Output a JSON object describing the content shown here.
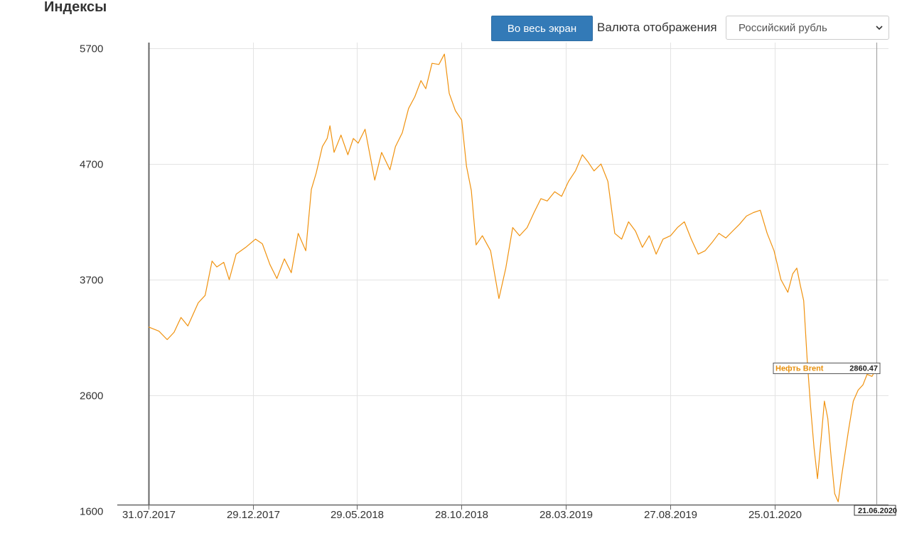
{
  "header": {
    "title": "Индексы",
    "fullscreen_label": "Во весь экран",
    "currency_label": "Валюта отображения",
    "currency_selected": "Российский рубль"
  },
  "colors": {
    "series": "#f0920f",
    "grid": "#e3e3e3",
    "axis": "#666666",
    "button": "#337ab7"
  },
  "chart_data": {
    "type": "line",
    "title": "",
    "xlabel": "",
    "ylabel": "",
    "ylim": [
      1600,
      5700
    ],
    "yticks": [
      {
        "value": 5700,
        "label": "5700"
      },
      {
        "value": 4700,
        "label": "4700"
      },
      {
        "value": 3700,
        "label": "3700"
      },
      {
        "value": 2600,
        "label": "2600"
      },
      {
        "value": 1600,
        "label": "1600"
      }
    ],
    "xticks": [
      "31.07.2017",
      "29.12.2017",
      "29.05.2018",
      "28.10.2018",
      "28.03.2019",
      "27.08.2019",
      "25.01.2020"
    ],
    "x_range": [
      "31.07.2017",
      "21.06.2020"
    ],
    "grid": true,
    "tooltip": {
      "name": "Нефть Brent",
      "value": "2860.47",
      "date": "21.06.2020"
    },
    "series": [
      {
        "name": "Нефть Brent",
        "points": [
          [
            "31.07.2017",
            3250
          ],
          [
            "15.08.2017",
            3210
          ],
          [
            "27.08.2017",
            3130
          ],
          [
            "06.09.2017",
            3200
          ],
          [
            "16.09.2017",
            3340
          ],
          [
            "26.09.2017",
            3260
          ],
          [
            "11.10.2017",
            3480
          ],
          [
            "21.10.2017",
            3550
          ],
          [
            "31.10.2017",
            3860
          ],
          [
            "07.11.2017",
            3810
          ],
          [
            "17.11.2017",
            3850
          ],
          [
            "25.11.2017",
            3700
          ],
          [
            "05.12.2017",
            3920
          ],
          [
            "19.12.2017",
            3980
          ],
          [
            "02.01.2018",
            4050
          ],
          [
            "12.01.2018",
            4010
          ],
          [
            "23.01.2018",
            3830
          ],
          [
            "02.02.2018",
            3710
          ],
          [
            "13.02.2018",
            3880
          ],
          [
            "23.02.2018",
            3760
          ],
          [
            "05.03.2018",
            4100
          ],
          [
            "16.03.2018",
            3950
          ],
          [
            "24.03.2018",
            4480
          ],
          [
            "31.03.2018",
            4620
          ],
          [
            "09.04.2018",
            4850
          ],
          [
            "16.04.2018",
            4920
          ],
          [
            "20.04.2018",
            5030
          ],
          [
            "26.04.2018",
            4800
          ],
          [
            "06.05.2018",
            4950
          ],
          [
            "16.05.2018",
            4780
          ],
          [
            "24.05.2018",
            4920
          ],
          [
            "31.05.2018",
            4880
          ],
          [
            "10.06.2018",
            5000
          ],
          [
            "17.06.2018",
            4780
          ],
          [
            "24.06.2018",
            4560
          ],
          [
            "04.07.2018",
            4800
          ],
          [
            "16.07.2018",
            4650
          ],
          [
            "24.07.2018",
            4850
          ],
          [
            "03.08.2018",
            4970
          ],
          [
            "12.08.2018",
            5180
          ],
          [
            "21.08.2018",
            5280
          ],
          [
            "30.08.2018",
            5420
          ],
          [
            "06.09.2018",
            5350
          ],
          [
            "15.09.2018",
            5570
          ],
          [
            "25.09.2018",
            5560
          ],
          [
            "03.10.2018",
            5650
          ],
          [
            "10.10.2018",
            5310
          ],
          [
            "19.10.2018",
            5160
          ],
          [
            "28.10.2018",
            5080
          ],
          [
            "04.11.2018",
            4680
          ],
          [
            "11.11.2018",
            4470
          ],
          [
            "18.11.2018",
            4000
          ],
          [
            "27.11.2018",
            4080
          ],
          [
            "09.12.2018",
            3950
          ],
          [
            "21.12.2018",
            3520
          ],
          [
            "31.12.2018",
            3800
          ],
          [
            "10.01.2019",
            4150
          ],
          [
            "20.01.2019",
            4080
          ],
          [
            "31.01.2019",
            4150
          ],
          [
            "10.02.2019",
            4280
          ],
          [
            "20.02.2019",
            4400
          ],
          [
            "01.03.2019",
            4380
          ],
          [
            "12.03.2019",
            4460
          ],
          [
            "22.03.2019",
            4420
          ],
          [
            "01.04.2019",
            4550
          ],
          [
            "11.04.2019",
            4640
          ],
          [
            "21.04.2019",
            4780
          ],
          [
            "29.04.2019",
            4720
          ],
          [
            "08.05.2019",
            4640
          ],
          [
            "18.05.2019",
            4700
          ],
          [
            "28.05.2019",
            4550
          ],
          [
            "07.06.2019",
            4100
          ],
          [
            "17.06.2019",
            4050
          ],
          [
            "27.06.2019",
            4200
          ],
          [
            "07.07.2019",
            4120
          ],
          [
            "17.07.2019",
            3980
          ],
          [
            "27.07.2019",
            4080
          ],
          [
            "06.08.2019",
            3920
          ],
          [
            "16.08.2019",
            4050
          ],
          [
            "27.08.2019",
            4080
          ],
          [
            "06.09.2019",
            4150
          ],
          [
            "16.09.2019",
            4200
          ],
          [
            "26.09.2019",
            4050
          ],
          [
            "06.10.2019",
            3920
          ],
          [
            "16.10.2019",
            3950
          ],
          [
            "26.10.2019",
            4020
          ],
          [
            "05.11.2019",
            4100
          ],
          [
            "15.11.2019",
            4060
          ],
          [
            "25.11.2019",
            4120
          ],
          [
            "05.12.2019",
            4180
          ],
          [
            "15.12.2019",
            4250
          ],
          [
            "25.12.2019",
            4280
          ],
          [
            "04.01.2020",
            4300
          ],
          [
            "14.01.2020",
            4100
          ],
          [
            "24.01.2020",
            3950
          ],
          [
            "03.02.2020",
            3700
          ],
          [
            "13.02.2020",
            3580
          ],
          [
            "20.02.2020",
            3750
          ],
          [
            "26.02.2020",
            3800
          ],
          [
            "02.03.2020",
            3650
          ],
          [
            "07.03.2020",
            3500
          ],
          [
            "12.03.2020",
            2950
          ],
          [
            "17.03.2020",
            2500
          ],
          [
            "22.03.2020",
            2150
          ],
          [
            "27.03.2020",
            1880
          ],
          [
            "01.04.2020",
            2200
          ],
          [
            "06.04.2020",
            2550
          ],
          [
            "11.04.2020",
            2400
          ],
          [
            "16.04.2020",
            2050
          ],
          [
            "21.04.2020",
            1750
          ],
          [
            "26.04.2020",
            1680
          ],
          [
            "01.05.2020",
            1900
          ],
          [
            "06.05.2020",
            2100
          ],
          [
            "11.05.2020",
            2300
          ],
          [
            "18.05.2020",
            2550
          ],
          [
            "25.05.2020",
            2650
          ],
          [
            "01.06.2020",
            2700
          ],
          [
            "07.06.2020",
            2800
          ],
          [
            "14.06.2020",
            2780
          ],
          [
            "21.06.2020",
            2860
          ]
        ]
      }
    ]
  }
}
